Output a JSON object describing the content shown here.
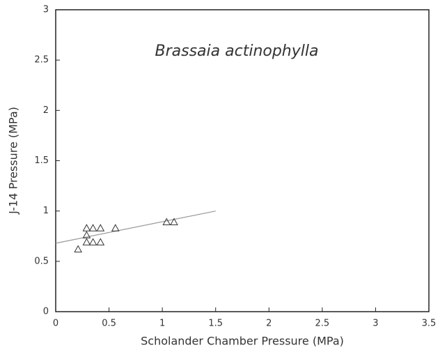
{
  "chart_data": {
    "type": "scatter",
    "title": "Brassaia actinophylla",
    "xlabel": "Scholander Chamber Pressure (MPa)",
    "ylabel": "J-14 Pressure (MPa)",
    "x": [
      0.21,
      0.29,
      0.29,
      0.29,
      0.35,
      0.35,
      0.42,
      0.42,
      0.56,
      1.04,
      1.11
    ],
    "values": [
      0.62,
      0.83,
      0.76,
      0.69,
      0.83,
      0.69,
      0.83,
      0.69,
      0.83,
      0.89,
      0.89
    ],
    "color": "#333333",
    "fit_line": {
      "x": [
        0,
        1.5
      ],
      "values": [
        0.68,
        1.0
      ],
      "color": "#999999"
    },
    "xlim": [
      0,
      3.5
    ],
    "xticks": [
      0,
      0.5,
      1,
      1.5,
      2,
      2.5,
      3,
      3.5
    ],
    "ylim": [
      0,
      3
    ],
    "yticks": [
      0,
      0.5,
      1,
      1.5,
      2,
      2.5,
      3
    ]
  }
}
